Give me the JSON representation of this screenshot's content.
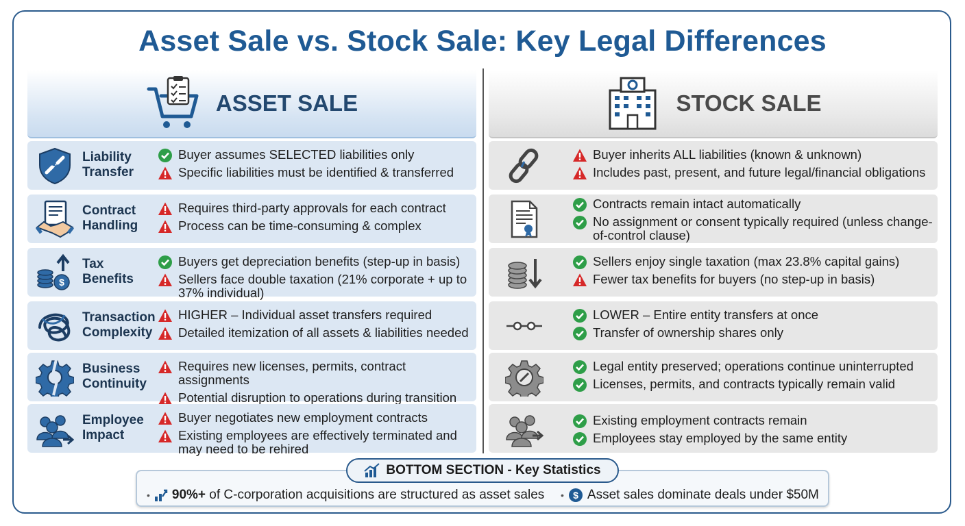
{
  "title": "Asset Sale vs. Stock Sale: Key Legal Differences",
  "colors": {
    "accent": "#1f5a94",
    "good": "#2e9e48",
    "warn": "#d62828",
    "asset_bg": "#dce7f3",
    "stock_bg": "#e7e7e7"
  },
  "asset": {
    "header": "ASSET SALE",
    "icon": "shopping-cart-clipboard-icon",
    "rows": [
      {
        "label1": "Liability",
        "label2": "Transfer",
        "icon": "shield-broken-chain-icon",
        "points": [
          {
            "type": "check",
            "text": "Buyer assumes SELECTED liabilities only"
          },
          {
            "type": "warn",
            "text": "Specific liabilities must be identified & transferred"
          }
        ]
      },
      {
        "label1": "Contract",
        "label2": "Handling",
        "icon": "document-handshake-icon",
        "points": [
          {
            "type": "warn",
            "text": "Requires third-party approvals for each contract"
          },
          {
            "type": "warn",
            "text": "Process can be time-consuming & complex"
          }
        ]
      },
      {
        "label1": "Tax",
        "label2": "Benefits",
        "icon": "coins-arrow-up-icon",
        "points": [
          {
            "type": "check",
            "text": "Buyers get depreciation benefits (step-up in basis)"
          },
          {
            "type": "warn",
            "text": "Sellers face double taxation (21% corporate + up to 37% individual)"
          }
        ]
      },
      {
        "label1": "Transaction",
        "label2": "Complexity",
        "icon": "tangled-knot-icon",
        "points": [
          {
            "type": "warn",
            "text": "HIGHER – Individual asset transfers required"
          },
          {
            "type": "warn",
            "text": "Detailed itemization of all assets & liabilities needed"
          }
        ]
      },
      {
        "label1": "Business",
        "label2": "Continuity",
        "icon": "broken-gear-icon",
        "points": [
          {
            "type": "warn",
            "text": "Requires new licenses, permits, contract assignments"
          },
          {
            "type": "warn",
            "text": "Potential disruption to operations during transition"
          }
        ]
      },
      {
        "label1": "Employee",
        "label2": "Impact",
        "icon": "employees-arrow-icon",
        "points": [
          {
            "type": "warn",
            "text": "Buyer negotiates new employment contracts"
          },
          {
            "type": "warn",
            "text": "Existing employees are effectively terminated and may need to be rehired"
          }
        ]
      }
    ]
  },
  "stock": {
    "header": "STOCK SALE",
    "icon": "corporate-building-icon",
    "rows": [
      {
        "icon": "chain-link-icon",
        "points": [
          {
            "type": "warn",
            "text": "Buyer inherits ALL liabilities (known & unknown)"
          },
          {
            "type": "warn",
            "text": "Includes past, present, and future legal/financial obligations"
          }
        ]
      },
      {
        "icon": "certificate-document-icon",
        "points": [
          {
            "type": "check",
            "text": "Contracts remain intact automatically"
          },
          {
            "type": "check",
            "text": "No assignment or consent typically required (unless change-of-control clause)"
          }
        ]
      },
      {
        "icon": "coins-arrow-down-icon",
        "points": [
          {
            "type": "check",
            "text": "Sellers enjoy single taxation (max 23.8% capital gains)"
          },
          {
            "type": "warn",
            "text": "Fewer tax benefits for buyers (no step-up in basis)"
          }
        ]
      },
      {
        "icon": "simple-connector-icon",
        "points": [
          {
            "type": "check",
            "text": "LOWER – Entire entity transfers at once"
          },
          {
            "type": "check",
            "text": "Transfer of ownership shares only"
          }
        ]
      },
      {
        "icon": "intact-gear-icon",
        "points": [
          {
            "type": "check",
            "text": "Legal entity preserved; operations continue uninterrupted"
          },
          {
            "type": "check",
            "text": "Licenses, permits, and contracts typically remain valid"
          }
        ]
      },
      {
        "icon": "employees-arrow-icon",
        "points": [
          {
            "type": "check",
            "text": "Existing employment contracts remain"
          },
          {
            "type": "check",
            "text": "Employees stay employed by the same entity"
          }
        ]
      }
    ]
  },
  "bottom": {
    "title": "BOTTOM SECTION - Key Statistics",
    "icon": "bar-chart-icon",
    "stats": [
      {
        "icon": "growth-arrow-icon",
        "bold": "90%+",
        "text": " of C-corporation acquisitions are structured as asset sales"
      },
      {
        "icon": "dollar-coin-icon",
        "bold": "",
        "text": "Asset sales dominate deals under $50M"
      }
    ]
  }
}
